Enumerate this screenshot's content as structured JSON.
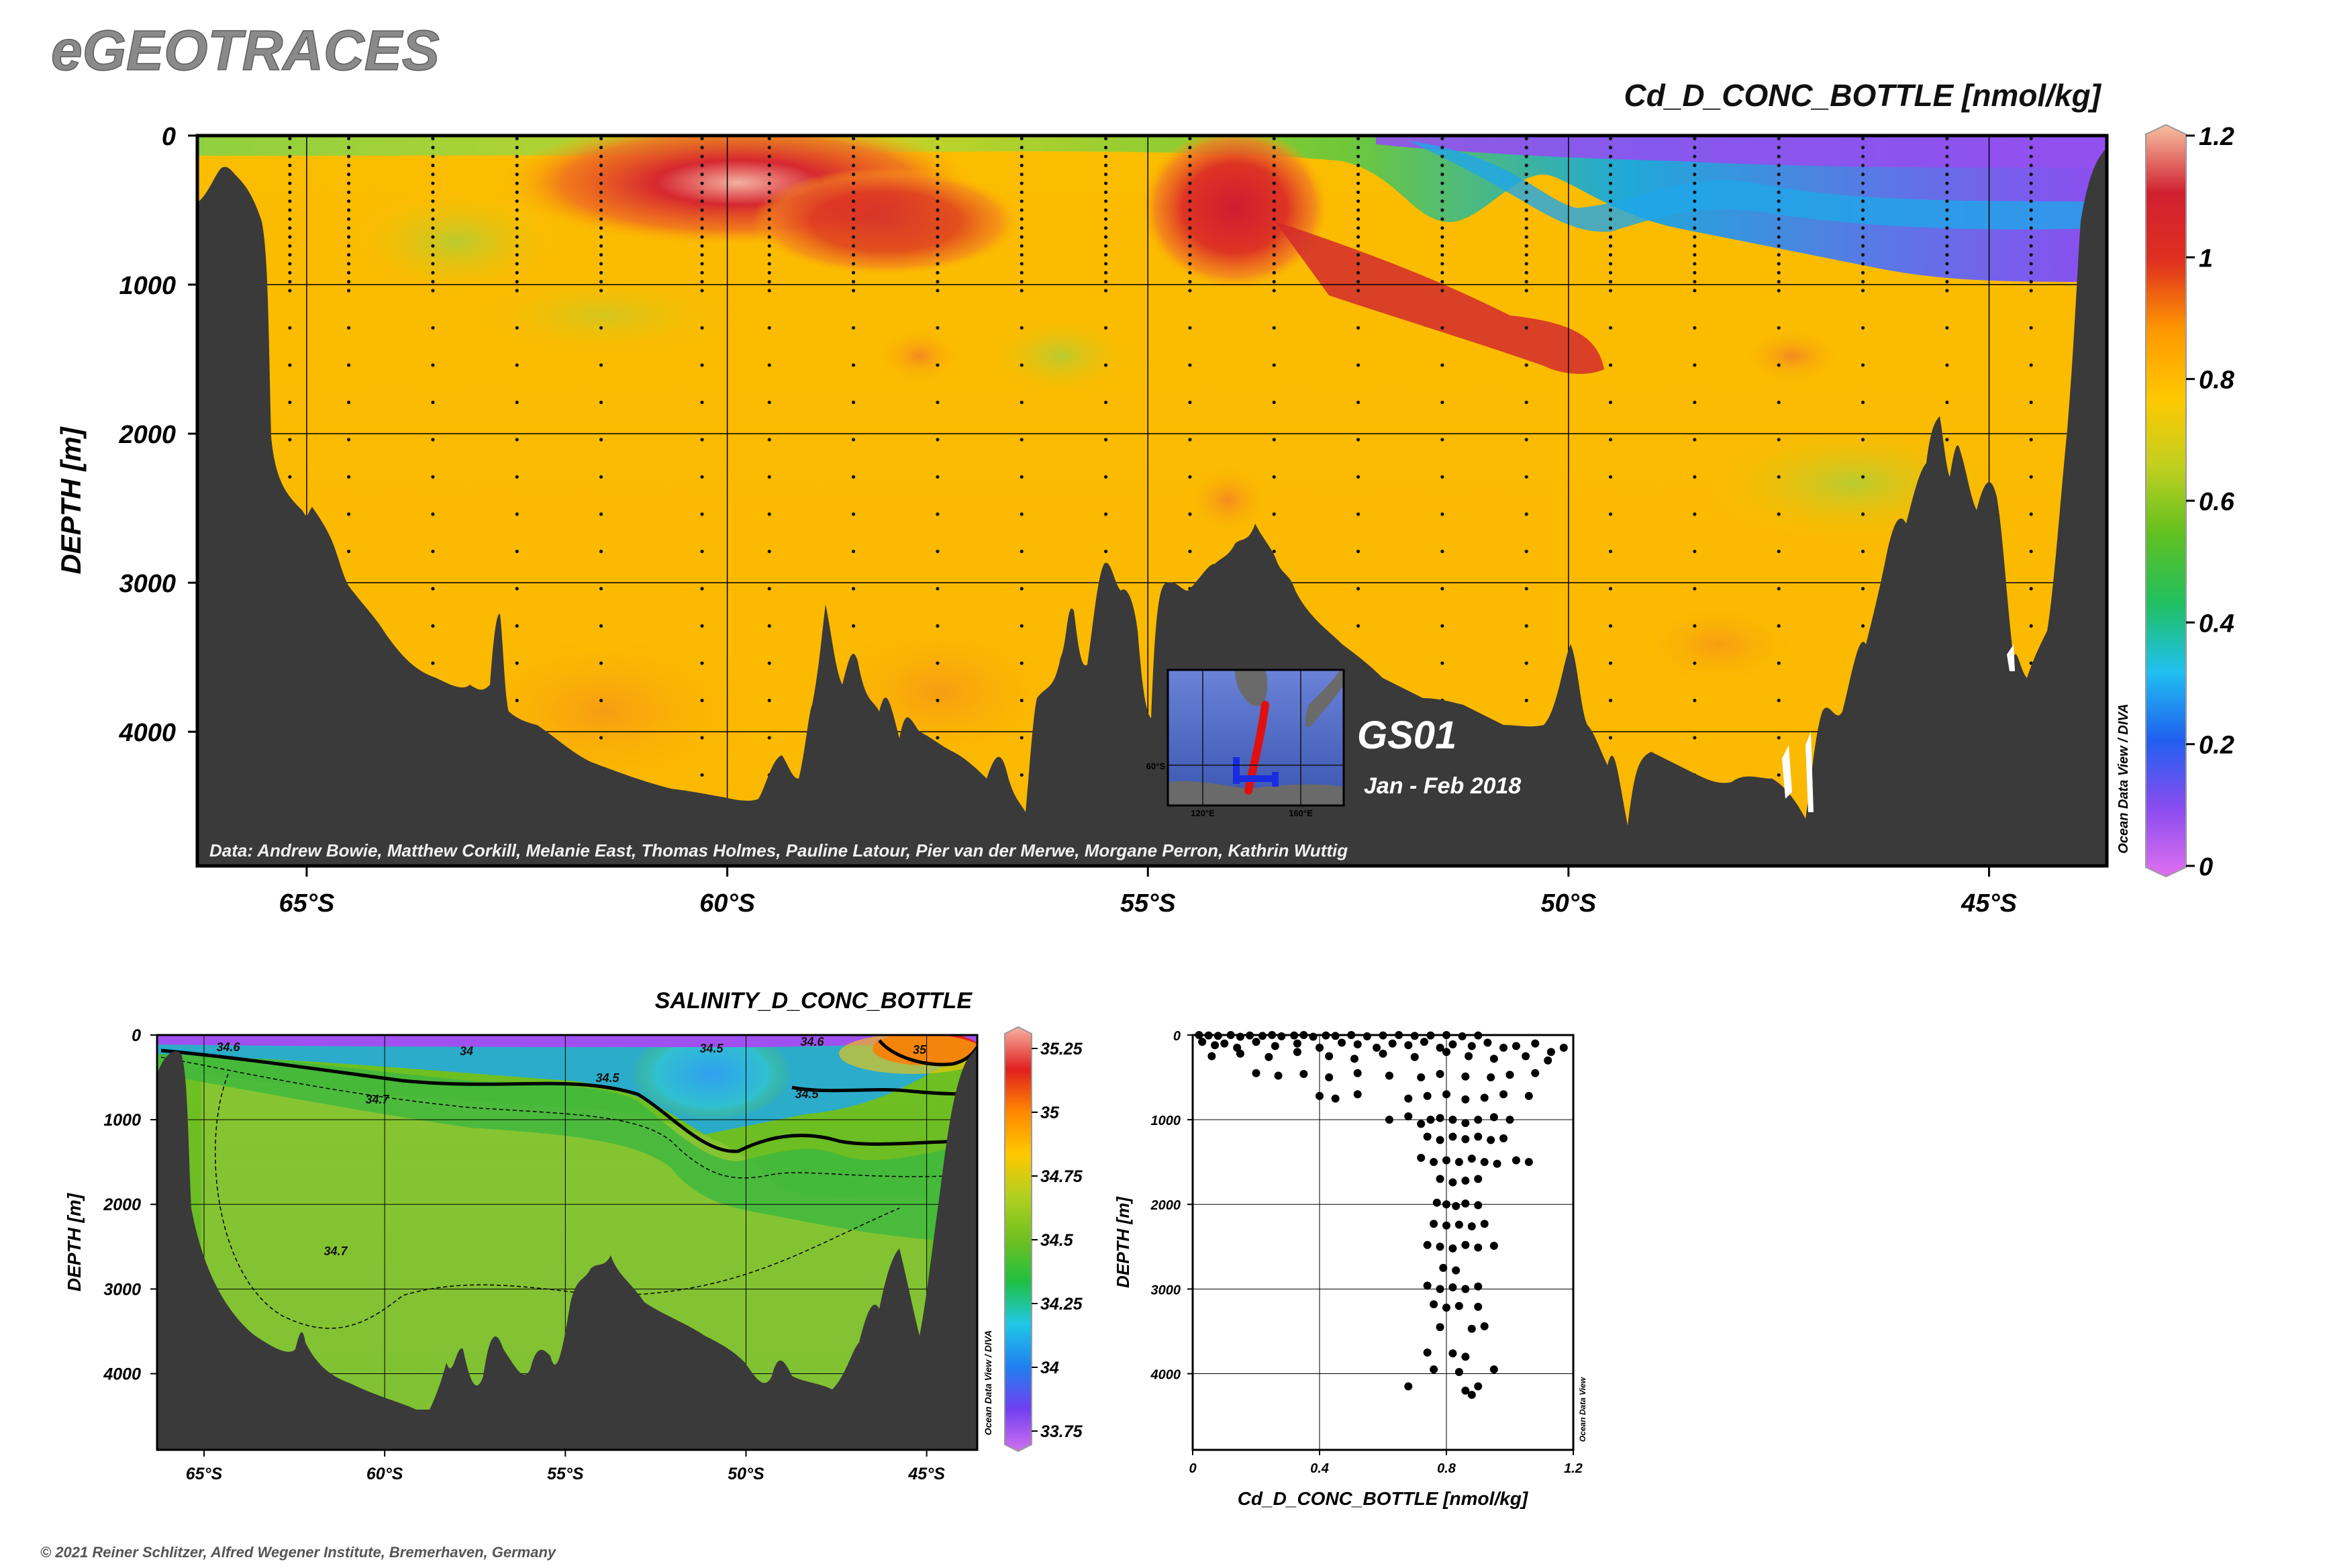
{
  "header": {
    "logo_text": "eGEOTRACES",
    "copyright": "© 2021 Reiner Schlitzer, Alfred Wegener Institute, Bremerhaven, Germany"
  },
  "colors": {
    "topo": "#3a3a3a",
    "cd_scale": [
      "#e070f0",
      "#8a4cf0",
      "#2060f0",
      "#20c0f0",
      "#20c060",
      "#60c020",
      "#c0d020",
      "#ffc800",
      "#ff9800",
      "#e03020",
      "#d02030",
      "#f8c0a0"
    ],
    "sal_scale": [
      "#d070f0",
      "#7040f0",
      "#2080f0",
      "#20c8e8",
      "#20c040",
      "#70c020",
      "#b0d020",
      "#ffc800",
      "#ff8800",
      "#e02020",
      "#f8b0a0"
    ]
  },
  "main_section": {
    "variable_title": "Cd_D_CONC_BOTTLE [nmol/kg]",
    "ylabel": "DEPTH [m]",
    "y_ticks": [
      "0",
      "1000",
      "2000",
      "3000",
      "4000"
    ],
    "y_tick_values": [
      0,
      1000,
      2000,
      3000,
      4000
    ],
    "x_ticks": [
      "65°S",
      "60°S",
      "55°S",
      "50°S",
      "45°S"
    ],
    "x_tick_values": [
      -65,
      -60,
      -55,
      -50,
      -45
    ],
    "xlim": [
      -66.3,
      -43.6
    ],
    "ylim": [
      4900,
      0
    ],
    "credit": "Data: Andrew Bowie, Matthew Corkill, Melanie East, Thomas Holmes, Pauline Latour, Pier van der Merwe, Morgane Perron, Kathrin Wuttig",
    "watermark": "Ocean Data View / DIVA",
    "colorbar": {
      "ticks": [
        "1.2",
        "1",
        "0.8",
        "0.6",
        "0.4",
        "0.2",
        "0"
      ],
      "values": [
        1.2,
        1.0,
        0.8,
        0.6,
        0.4,
        0.2,
        0.0
      ]
    },
    "cruise": {
      "name": "GS01",
      "dates": "Jan - Feb 2018",
      "inset_lon_labels": [
        "120°E",
        "160°E"
      ],
      "inset_lat_label": "60°S"
    }
  },
  "salinity_section": {
    "title": "SALINITY_D_CONC_BOTTLE",
    "ylabel": "DEPTH [m]",
    "y_ticks": [
      "0",
      "1000",
      "2000",
      "3000",
      "4000"
    ],
    "x_ticks": [
      "65°S",
      "60°S",
      "55°S",
      "50°S",
      "45°S"
    ],
    "watermark": "Ocean Data View / DIVA",
    "colorbar": {
      "ticks": [
        "35.25",
        "35",
        "34.75",
        "34.5",
        "34.25",
        "34",
        "33.75"
      ],
      "values": [
        35.25,
        35.0,
        34.75,
        34.5,
        34.25,
        34.0,
        33.75
      ]
    },
    "contour_labels": [
      "34.6",
      "34",
      "34.5",
      "34.5",
      "34.6",
      "35",
      "34.5",
      "34.7",
      "34.7"
    ]
  },
  "chart_data": [
    {
      "type": "heatmap",
      "title": "Cd_D_CONC_BOTTLE [nmol/kg]",
      "xlabel": "",
      "ylabel": "DEPTH [m]",
      "xlim": [
        -66.3,
        -43.6
      ],
      "ylim": [
        4900,
        0
      ],
      "zlim": [
        0,
        1.2
      ],
      "grid": true,
      "station_latitudes": [
        -65.2,
        -64.5,
        -63.5,
        -62.5,
        -61.5,
        -60.3,
        -59.5,
        -58.5,
        -57.5,
        -56.5,
        -55.5,
        -54.5,
        -53.5,
        -52.5,
        -51.5,
        -50.5,
        -49.5,
        -48.5,
        -47.5,
        -46.5,
        -45.5,
        -44.5
      ],
      "features": [
        {
          "description": "surface minimum",
          "lat_range": [
            -50,
            -44
          ],
          "depth_range": [
            0,
            300
          ],
          "value": 0.1
        },
        {
          "description": "subsurface maximum",
          "lat_range": [
            -63,
            -57
          ],
          "depth_range": [
            100,
            500
          ],
          "value": 1.1
        },
        {
          "description": "subsurface maximum",
          "lat_range": [
            -55,
            -51
          ],
          "depth_range": [
            200,
            1500
          ],
          "value": 1.05
        },
        {
          "description": "deep water",
          "lat_range": [
            -66,
            -44
          ],
          "depth_range": [
            1500,
            4500
          ],
          "value": 0.85
        }
      ]
    },
    {
      "type": "heatmap",
      "title": "SALINITY_D_CONC_BOTTLE",
      "xlabel": "",
      "ylabel": "DEPTH [m]",
      "xlim": [
        -66.3,
        -43.6
      ],
      "ylim": [
        4900,
        0
      ],
      "zlim": [
        33.75,
        35.25
      ],
      "contours": [
        34.5,
        34.6,
        34.7
      ]
    },
    {
      "type": "scatter",
      "title": "",
      "xlabel": "Cd_D_CONC_BOTTLE [nmol/kg]",
      "ylabel": "DEPTH [m]",
      "xlim": [
        0,
        1.2
      ],
      "ylim": [
        4900,
        0
      ],
      "x_ticks": [
        "0",
        "0.4",
        "0.8",
        "1.2"
      ],
      "y_ticks": [
        "0",
        "1000",
        "2000",
        "3000",
        "4000"
      ],
      "watermark": "Ocean Data View",
      "points": [
        [
          0.02,
          0
        ],
        [
          0.05,
          5
        ],
        [
          0.08,
          10
        ],
        [
          0.12,
          0
        ],
        [
          0.15,
          20
        ],
        [
          0.18,
          5
        ],
        [
          0.22,
          10
        ],
        [
          0.25,
          0
        ],
        [
          0.28,
          15
        ],
        [
          0.32,
          5
        ],
        [
          0.35,
          0
        ],
        [
          0.38,
          20
        ],
        [
          0.42,
          5
        ],
        [
          0.45,
          10
        ],
        [
          0.5,
          0
        ],
        [
          0.55,
          15
        ],
        [
          0.6,
          5
        ],
        [
          0.65,
          0
        ],
        [
          0.7,
          10
        ],
        [
          0.75,
          5
        ],
        [
          0.8,
          0
        ],
        [
          0.85,
          15
        ],
        [
          0.9,
          5
        ],
        [
          0.03,
          80
        ],
        [
          0.07,
          120
        ],
        [
          0.1,
          100
        ],
        [
          0.14,
          150
        ],
        [
          0.2,
          80
        ],
        [
          0.26,
          130
        ],
        [
          0.33,
          100
        ],
        [
          0.4,
          150
        ],
        [
          0.47,
          90
        ],
        [
          0.52,
          110
        ],
        [
          0.58,
          150
        ],
        [
          0.63,
          100
        ],
        [
          0.68,
          120
        ],
        [
          0.73,
          80
        ],
        [
          0.78,
          150
        ],
        [
          0.82,
          110
        ],
        [
          0.88,
          130
        ],
        [
          0.93,
          90
        ],
        [
          0.98,
          150
        ],
        [
          1.02,
          130
        ],
        [
          1.08,
          100
        ],
        [
          1.13,
          200
        ],
        [
          1.17,
          150
        ],
        [
          0.06,
          250
        ],
        [
          0.15,
          220
        ],
        [
          0.24,
          260
        ],
        [
          0.33,
          200
        ],
        [
          0.43,
          250
        ],
        [
          0.51,
          280
        ],
        [
          0.6,
          220
        ],
        [
          0.7,
          260
        ],
        [
          0.8,
          200
        ],
        [
          0.87,
          250
        ],
        [
          0.95,
          280
        ],
        [
          1.05,
          250
        ],
        [
          1.12,
          300
        ],
        [
          0.2,
          450
        ],
        [
          0.27,
          480
        ],
        [
          0.35,
          460
        ],
        [
          0.43,
          500
        ],
        [
          0.52,
          450
        ],
        [
          0.62,
          480
        ],
        [
          0.72,
          500
        ],
        [
          0.78,
          460
        ],
        [
          0.86,
          490
        ],
        [
          0.94,
          500
        ],
        [
          1.0,
          470
        ],
        [
          1.08,
          450
        ],
        [
          0.4,
          720
        ],
        [
          0.45,
          750
        ],
        [
          0.52,
          700
        ],
        [
          0.68,
          750
        ],
        [
          0.74,
          720
        ],
        [
          0.8,
          700
        ],
        [
          0.86,
          760
        ],
        [
          0.92,
          740
        ],
        [
          0.98,
          700
        ],
        [
          1.06,
          720
        ],
        [
          0.62,
          1000
        ],
        [
          0.68,
          960
        ],
        [
          0.72,
          1050
        ],
        [
          0.75,
          1000
        ],
        [
          0.78,
          980
        ],
        [
          0.82,
          1000
        ],
        [
          0.86,
          1040
        ],
        [
          0.9,
          1000
        ],
        [
          0.95,
          970
        ],
        [
          1.0,
          1000
        ],
        [
          0.74,
          1200
        ],
        [
          0.78,
          1240
        ],
        [
          0.82,
          1200
        ],
        [
          0.86,
          1230
        ],
        [
          0.9,
          1200
        ],
        [
          0.94,
          1240
        ],
        [
          0.98,
          1220
        ],
        [
          0.72,
          1450
        ],
        [
          0.76,
          1500
        ],
        [
          0.8,
          1480
        ],
        [
          0.84,
          1500
        ],
        [
          0.88,
          1460
        ],
        [
          0.92,
          1500
        ],
        [
          0.96,
          1520
        ],
        [
          1.02,
          1480
        ],
        [
          1.06,
          1500
        ],
        [
          0.78,
          1700
        ],
        [
          0.82,
          1740
        ],
        [
          0.86,
          1720
        ],
        [
          0.9,
          1700
        ],
        [
          0.77,
          1980
        ],
        [
          0.8,
          2000
        ],
        [
          0.83,
          2020
        ],
        [
          0.86,
          1990
        ],
        [
          0.9,
          2010
        ],
        [
          0.76,
          2230
        ],
        [
          0.8,
          2250
        ],
        [
          0.84,
          2240
        ],
        [
          0.88,
          2260
        ],
        [
          0.92,
          2230
        ],
        [
          0.74,
          2480
        ],
        [
          0.78,
          2500
        ],
        [
          0.82,
          2520
        ],
        [
          0.86,
          2480
        ],
        [
          0.9,
          2510
        ],
        [
          0.95,
          2490
        ],
        [
          0.79,
          2750
        ],
        [
          0.83,
          2780
        ],
        [
          0.74,
          2960
        ],
        [
          0.78,
          3000
        ],
        [
          0.82,
          2980
        ],
        [
          0.86,
          3000
        ],
        [
          0.9,
          2970
        ],
        [
          0.76,
          3180
        ],
        [
          0.8,
          3220
        ],
        [
          0.84,
          3200
        ],
        [
          0.9,
          3210
        ],
        [
          0.78,
          3450
        ],
        [
          0.88,
          3470
        ],
        [
          0.92,
          3440
        ],
        [
          0.74,
          3750
        ],
        [
          0.82,
          3760
        ],
        [
          0.86,
          3800
        ],
        [
          0.76,
          3950
        ],
        [
          0.84,
          3980
        ],
        [
          0.95,
          3950
        ],
        [
          0.68,
          4150
        ],
        [
          0.86,
          4200
        ],
        [
          0.9,
          4150
        ],
        [
          0.88,
          4250
        ]
      ]
    }
  ]
}
